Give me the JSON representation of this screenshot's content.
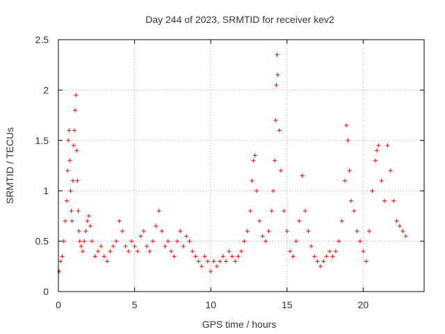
{
  "chart_data": {
    "type": "scatter",
    "title": "Day 244 of 2023, SRMTID for receiver kev2",
    "xlabel": "GPS time / hours",
    "ylabel": "SRMTID / TECUs",
    "xlim": [
      0,
      24
    ],
    "ylim": [
      0,
      2.5
    ],
    "xticks": [
      0,
      5,
      10,
      15,
      20
    ],
    "yticks": [
      0,
      0.5,
      1,
      1.5,
      2,
      2.5
    ],
    "xtick_labels": [
      "0",
      "5",
      "10",
      "15",
      "20"
    ],
    "ytick_labels": [
      "0",
      "0.5",
      "1",
      "1.5",
      "2",
      "2.5"
    ],
    "grid": true,
    "marker": "+",
    "color": "#ff0000",
    "series": [
      {
        "name": "SRMTID",
        "x": [
          0.05,
          0.15,
          0.25,
          0.35,
          0.45,
          0.55,
          0.6,
          0.65,
          0.7,
          0.75,
          0.8,
          0.85,
          0.9,
          0.95,
          1.0,
          1.05,
          1.1,
          1.15,
          1.2,
          1.25,
          1.3,
          1.35,
          1.4,
          1.5,
          1.6,
          1.7,
          1.8,
          1.9,
          2.0,
          2.1,
          2.2,
          2.4,
          2.6,
          2.8,
          3.0,
          3.2,
          3.4,
          3.6,
          3.8,
          4.0,
          4.2,
          4.4,
          4.6,
          4.8,
          5.0,
          5.2,
          5.4,
          5.6,
          5.8,
          6.0,
          6.2,
          6.4,
          6.6,
          6.8,
          7.0,
          7.2,
          7.4,
          7.6,
          7.8,
          8.0,
          8.2,
          8.4,
          8.6,
          8.8,
          9.0,
          9.2,
          9.4,
          9.6,
          9.8,
          10.0,
          10.2,
          10.4,
          10.6,
          10.8,
          11.0,
          11.2,
          11.4,
          11.6,
          11.8,
          12.0,
          12.2,
          12.4,
          12.6,
          12.7,
          12.8,
          12.9,
          13.0,
          13.2,
          13.4,
          13.6,
          13.8,
          14.0,
          14.1,
          14.2,
          14.25,
          14.3,
          14.35,
          14.4,
          14.5,
          14.6,
          14.8,
          15.0,
          15.2,
          15.4,
          15.6,
          15.8,
          16.0,
          16.2,
          16.4,
          16.6,
          16.8,
          17.0,
          17.2,
          17.4,
          17.6,
          17.8,
          18.0,
          18.2,
          18.4,
          18.6,
          18.8,
          18.9,
          19.0,
          19.1,
          19.2,
          19.4,
          19.6,
          19.8,
          20.0,
          20.2,
          20.4,
          20.6,
          20.8,
          20.9,
          21.0,
          21.2,
          21.4,
          21.6,
          21.8,
          22.0,
          22.2,
          22.4,
          22.6,
          22.8
        ],
        "y": [
          0.2,
          0.3,
          0.35,
          0.5,
          0.7,
          0.9,
          1.2,
          1.5,
          1.6,
          1.3,
          1.0,
          0.8,
          0.7,
          1.1,
          1.45,
          1.6,
          1.8,
          1.95,
          1.4,
          1.1,
          0.8,
          0.6,
          0.5,
          0.45,
          0.4,
          0.5,
          0.6,
          0.7,
          0.75,
          0.65,
          0.5,
          0.35,
          0.4,
          0.45,
          0.35,
          0.3,
          0.4,
          0.45,
          0.5,
          0.7,
          0.6,
          0.45,
          0.4,
          0.5,
          0.45,
          0.4,
          0.55,
          0.6,
          0.45,
          0.4,
          0.5,
          0.65,
          0.8,
          0.6,
          0.45,
          0.5,
          0.4,
          0.35,
          0.5,
          0.6,
          0.45,
          0.55,
          0.5,
          0.4,
          0.35,
          0.3,
          0.25,
          0.35,
          0.3,
          0.2,
          0.3,
          0.25,
          0.3,
          0.35,
          0.3,
          0.4,
          0.35,
          0.3,
          0.35,
          0.4,
          0.5,
          0.6,
          0.8,
          1.1,
          1.3,
          1.35,
          1.0,
          0.7,
          0.55,
          0.5,
          0.6,
          0.8,
          1.0,
          1.3,
          1.7,
          2.05,
          2.35,
          2.15,
          1.6,
          1.2,
          0.8,
          0.6,
          0.4,
          0.35,
          0.5,
          0.7,
          1.15,
          0.8,
          0.6,
          0.45,
          0.35,
          0.3,
          0.25,
          0.3,
          0.35,
          0.4,
          0.35,
          0.4,
          0.5,
          0.7,
          1.1,
          1.65,
          1.5,
          1.2,
          0.9,
          0.8,
          0.6,
          0.5,
          0.4,
          0.3,
          0.6,
          1.0,
          1.3,
          1.4,
          1.45,
          1.1,
          0.9,
          1.45,
          1.2,
          0.9,
          0.7,
          0.65,
          0.6,
          0.55
        ]
      }
    ]
  }
}
